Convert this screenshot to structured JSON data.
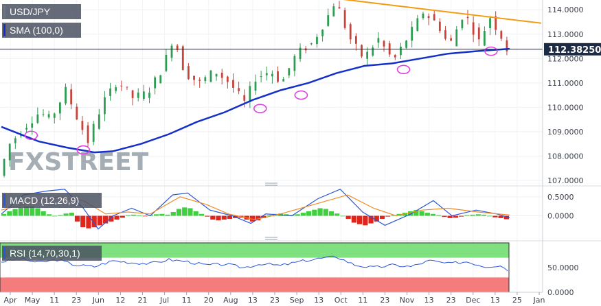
{
  "chart_data": [
    {
      "type": "candlestick",
      "title": "USD/JPY",
      "indicator_label": "SMA (100,0)",
      "last_price_label": "112.38250",
      "ylim": [
        107.0,
        114.4
      ],
      "yticks": [
        "107.0000",
        "108.0000",
        "109.0000",
        "110.0000",
        "111.0000",
        "112.0000",
        "113.0000",
        "114.0000"
      ],
      "ytick_values": [
        107,
        108,
        109,
        110,
        111,
        112,
        113,
        114
      ],
      "xlabels": [
        "Apr",
        "May",
        "11",
        "23",
        "Jun",
        "12",
        "21",
        "Jul",
        "11",
        "20",
        "Aug",
        "13",
        "23",
        "Sep",
        "13",
        "Oct",
        "11",
        "23",
        "Nov",
        "13",
        "23",
        "Dec",
        "13",
        "25",
        "Jan"
      ],
      "price_path": [
        {
          "t": 0,
          "p": 107.2
        },
        {
          "t": 6,
          "p": 108.5
        },
        {
          "t": 14,
          "p": 109.2
        },
        {
          "t": 22,
          "p": 109.8
        },
        {
          "t": 28,
          "p": 109.5
        },
        {
          "t": 36,
          "p": 110.7
        },
        {
          "t": 42,
          "p": 109.6
        },
        {
          "t": 48,
          "p": 108.6
        },
        {
          "t": 56,
          "p": 110.2
        },
        {
          "t": 64,
          "p": 111.1
        },
        {
          "t": 72,
          "p": 110.4
        },
        {
          "t": 80,
          "p": 110.6
        },
        {
          "t": 88,
          "p": 111.6
        },
        {
          "t": 94,
          "p": 112.9
        },
        {
          "t": 100,
          "p": 111.4
        },
        {
          "t": 108,
          "p": 111.0
        },
        {
          "t": 116,
          "p": 111.5
        },
        {
          "t": 124,
          "p": 111.0
        },
        {
          "t": 132,
          "p": 110.2
        },
        {
          "t": 138,
          "p": 111.2
        },
        {
          "t": 146,
          "p": 111.5
        },
        {
          "t": 152,
          "p": 111.0
        },
        {
          "t": 160,
          "p": 112.2
        },
        {
          "t": 168,
          "p": 112.6
        },
        {
          "t": 176,
          "p": 113.6
        },
        {
          "t": 181,
          "p": 114.4
        },
        {
          "t": 188,
          "p": 112.9
        },
        {
          "t": 196,
          "p": 112.0
        },
        {
          "t": 204,
          "p": 112.8
        },
        {
          "t": 212,
          "p": 111.9
        },
        {
          "t": 220,
          "p": 112.9
        },
        {
          "t": 228,
          "p": 113.9
        },
        {
          "t": 236,
          "p": 113.4
        },
        {
          "t": 242,
          "p": 112.5
        },
        {
          "t": 250,
          "p": 113.9
        },
        {
          "t": 258,
          "p": 112.7
        },
        {
          "t": 264,
          "p": 113.7
        },
        {
          "t": 270,
          "p": 112.9
        },
        {
          "t": 273,
          "p": 112.38
        }
      ],
      "sma_path": [
        {
          "t": 0,
          "p": 109.2
        },
        {
          "t": 20,
          "p": 108.6
        },
        {
          "t": 35,
          "p": 108.35
        },
        {
          "t": 50,
          "p": 108.15
        },
        {
          "t": 60,
          "p": 108.2
        },
        {
          "t": 75,
          "p": 108.5
        },
        {
          "t": 90,
          "p": 108.9
        },
        {
          "t": 105,
          "p": 109.4
        },
        {
          "t": 120,
          "p": 109.8
        },
        {
          "t": 135,
          "p": 110.3
        },
        {
          "t": 150,
          "p": 110.7
        },
        {
          "t": 165,
          "p": 111.0
        },
        {
          "t": 180,
          "p": 111.4
        },
        {
          "t": 195,
          "p": 111.7
        },
        {
          "t": 210,
          "p": 111.8
        },
        {
          "t": 225,
          "p": 112.0
        },
        {
          "t": 240,
          "p": 112.2
        },
        {
          "t": 255,
          "p": 112.3
        },
        {
          "t": 273,
          "p": 112.4
        }
      ],
      "trendline": [
        {
          "t": 181,
          "p": 114.45
        },
        {
          "t": 290,
          "p": 113.45
        }
      ],
      "touch_points": [
        {
          "t": 16,
          "p": 108.85
        },
        {
          "t": 44,
          "p": 108.25
        },
        {
          "t": 139,
          "p": 109.95
        },
        {
          "t": 161,
          "p": 110.5
        },
        {
          "t": 216,
          "p": 111.55
        },
        {
          "t": 263,
          "p": 112.3
        }
      ]
    },
    {
      "type": "histogram",
      "title": "MACD (12,26,9)",
      "ylim": [
        -0.55,
        0.75
      ],
      "yticks": [
        "0.0000",
        "0.5000"
      ],
      "ytick_values": [
        0,
        0.5
      ],
      "macd_path": [
        {
          "t": 0,
          "p": 0.05
        },
        {
          "t": 12,
          "p": 0.55
        },
        {
          "t": 24,
          "p": 0.65
        },
        {
          "t": 34,
          "p": 0.7
        },
        {
          "t": 44,
          "p": 0.2
        },
        {
          "t": 52,
          "p": -0.35
        },
        {
          "t": 60,
          "p": 0.0
        },
        {
          "t": 70,
          "p": 0.2
        },
        {
          "t": 80,
          "p": 0.0
        },
        {
          "t": 92,
          "p": 0.55
        },
        {
          "t": 100,
          "p": 0.6
        },
        {
          "t": 112,
          "p": 0.15
        },
        {
          "t": 124,
          "p": 0.0
        },
        {
          "t": 134,
          "p": -0.2
        },
        {
          "t": 142,
          "p": 0.05
        },
        {
          "t": 156,
          "p": 0.0
        },
        {
          "t": 170,
          "p": 0.45
        },
        {
          "t": 182,
          "p": 0.7
        },
        {
          "t": 194,
          "p": 0.1
        },
        {
          "t": 206,
          "p": -0.25
        },
        {
          "t": 220,
          "p": 0.05
        },
        {
          "t": 232,
          "p": 0.4
        },
        {
          "t": 242,
          "p": 0.0
        },
        {
          "t": 255,
          "p": 0.15
        },
        {
          "t": 266,
          "p": 0.05
        },
        {
          "t": 273,
          "p": -0.05
        }
      ],
      "signal_path": [
        {
          "t": 0,
          "p": 0.15
        },
        {
          "t": 16,
          "p": 0.35
        },
        {
          "t": 30,
          "p": 0.5
        },
        {
          "t": 44,
          "p": 0.4
        },
        {
          "t": 56,
          "p": 0.05
        },
        {
          "t": 68,
          "p": 0.1
        },
        {
          "t": 80,
          "p": 0.05
        },
        {
          "t": 96,
          "p": 0.5
        },
        {
          "t": 110,
          "p": 0.3
        },
        {
          "t": 122,
          "p": 0.05
        },
        {
          "t": 136,
          "p": -0.1
        },
        {
          "t": 150,
          "p": 0.05
        },
        {
          "t": 168,
          "p": 0.3
        },
        {
          "t": 186,
          "p": 0.55
        },
        {
          "t": 200,
          "p": 0.2
        },
        {
          "t": 212,
          "p": 0.0
        },
        {
          "t": 226,
          "p": 0.15
        },
        {
          "t": 240,
          "p": 0.2
        },
        {
          "t": 256,
          "p": 0.1
        },
        {
          "t": 273,
          "p": 0.02
        }
      ],
      "hist": [
        0.05,
        0.12,
        0.18,
        0.22,
        0.25,
        0.25,
        0.2,
        0.12,
        0.04,
        0.0,
        0.02,
        0.06,
        0.08,
        -0.15,
        -0.3,
        -0.33,
        -0.3,
        -0.25,
        -0.2,
        -0.15,
        -0.1,
        -0.05,
        0.02,
        0.03,
        0.01,
        -0.01,
        0.02,
        0.04,
        0.05,
        0.03,
        0.1,
        0.18,
        0.22,
        0.2,
        0.12,
        0.05,
        -0.02,
        -0.1,
        -0.12,
        -0.1,
        -0.08,
        -0.06,
        -0.05,
        -0.1,
        -0.15,
        -0.12,
        -0.06,
        0.02,
        0.05,
        0.06,
        0.04,
        0.02,
        0.04,
        0.08,
        0.12,
        0.16,
        0.2,
        0.18,
        0.12,
        0.06,
        0.0,
        -0.08,
        -0.18,
        -0.22,
        -0.25,
        -0.2,
        -0.15,
        -0.08,
        -0.02,
        0.02,
        0.05,
        0.08,
        0.12,
        0.15,
        0.12,
        0.08,
        0.05,
        0.02,
        -0.03,
        -0.06,
        -0.05,
        -0.02,
        0.02,
        0.03,
        0.04,
        0.03,
        0.0,
        -0.04,
        -0.06,
        -0.09
      ]
    },
    {
      "type": "line",
      "title": "RSI (14,70,30,1)",
      "ylim": [
        0,
        100
      ],
      "yticks": [
        "0.0000",
        "50.0000"
      ],
      "ytick_values": [
        0,
        50
      ],
      "overbought": 70,
      "oversold": 30,
      "rsi_path": [
        {
          "t": 0,
          "p": 62
        },
        {
          "t": 10,
          "p": 68
        },
        {
          "t": 20,
          "p": 60
        },
        {
          "t": 30,
          "p": 66
        },
        {
          "t": 40,
          "p": 55
        },
        {
          "t": 50,
          "p": 52
        },
        {
          "t": 60,
          "p": 64
        },
        {
          "t": 70,
          "p": 60
        },
        {
          "t": 80,
          "p": 58
        },
        {
          "t": 90,
          "p": 66
        },
        {
          "t": 100,
          "p": 62
        },
        {
          "t": 110,
          "p": 55
        },
        {
          "t": 120,
          "p": 57
        },
        {
          "t": 130,
          "p": 50
        },
        {
          "t": 140,
          "p": 58
        },
        {
          "t": 150,
          "p": 54
        },
        {
          "t": 160,
          "p": 62
        },
        {
          "t": 170,
          "p": 68
        },
        {
          "t": 180,
          "p": 72
        },
        {
          "t": 190,
          "p": 55
        },
        {
          "t": 200,
          "p": 50
        },
        {
          "t": 210,
          "p": 55
        },
        {
          "t": 220,
          "p": 52
        },
        {
          "t": 230,
          "p": 64
        },
        {
          "t": 240,
          "p": 58
        },
        {
          "t": 250,
          "p": 62
        },
        {
          "t": 260,
          "p": 52
        },
        {
          "t": 268,
          "p": 55
        },
        {
          "t": 273,
          "p": 42
        }
      ]
    }
  ],
  "watermark": "FXSTREET"
}
